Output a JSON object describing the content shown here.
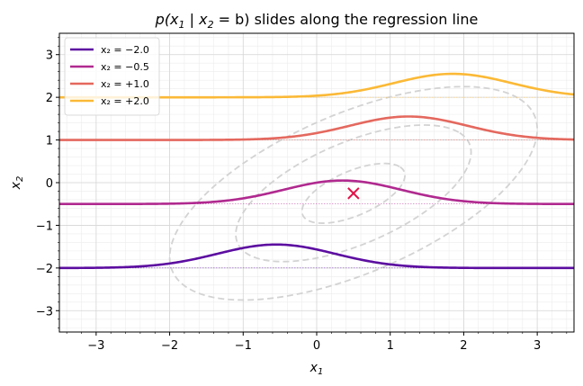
{
  "chart_data": {
    "type": "line",
    "title_parts": {
      "pre": "p(x",
      "sub1": "1",
      "mid": " | x",
      "sub2": "2",
      "post": " = b) slides along the regression line"
    },
    "xlabel": {
      "base": "x",
      "sub": "1"
    },
    "ylabel": {
      "base": "x",
      "sub": "2"
    },
    "xlim": [
      -3.5,
      3.5
    ],
    "ylim": [
      -3.5,
      3.5
    ],
    "xticks": [
      -3,
      -2,
      -1,
      0,
      1,
      2,
      3
    ],
    "yticks": [
      -3,
      -2,
      -1,
      0,
      1,
      2,
      3
    ],
    "xtick_labels": [
      "−3",
      "−2",
      "−1",
      "0",
      "1",
      "2",
      "3"
    ],
    "ytick_labels": [
      "−3",
      "−2",
      "−1",
      "0",
      "1",
      "2",
      "3"
    ],
    "grid": true,
    "minor_grid": true,
    "legend_position": "top-left",
    "model": {
      "mean": [
        0.5,
        -0.25
      ],
      "sigma1": 1,
      "sigma2": 1,
      "rho": 0.6
    },
    "contour_levels": [
      0.7,
      1.6,
      2.5
    ],
    "contour_color": "#d3d3d3",
    "curve_amplitude": 0.55,
    "series": [
      {
        "b": -2.0,
        "name": "x₂ = −2.0",
        "color": "#5c0da0"
      },
      {
        "b": -0.5,
        "name": "x₂ = −0.5",
        "color": "#b0298f"
      },
      {
        "b": 1.0,
        "name": "x₂ = +1.0",
        "color": "#e4685e"
      },
      {
        "b": 2.0,
        "name": "x₂ = +2.0",
        "color": "#fbb936"
      }
    ],
    "marker": {
      "x": 0.5,
      "y": -0.25,
      "symbol": "x",
      "color": "#e0134a"
    }
  }
}
